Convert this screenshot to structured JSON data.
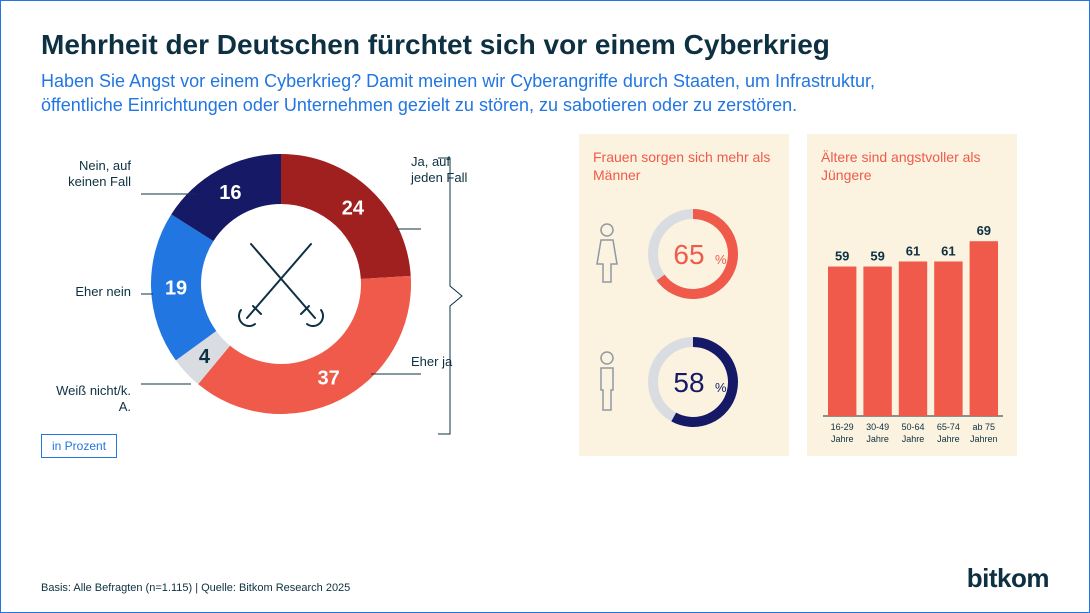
{
  "headline": "Mehrheit der Deutschen fürchtet sich vor einem Cyberkrieg",
  "subhead": "Haben Sie Angst vor einem Cyberkrieg? Damit meinen wir Cyberangriffe durch Staaten, um Infrastruktur, öffentliche Einrichtungen oder Unternehmen gezielt zu stören, zu sabotieren oder zu zerstören.",
  "donut": {
    "type": "donut",
    "inner_radius": 80,
    "outer_radius": 130,
    "segments": [
      {
        "label": "Ja, auf\njeden Fall",
        "value": 24,
        "color": "#a01f1f"
      },
      {
        "label": "Eher ja",
        "value": 37,
        "color": "#ef5a4a"
      },
      {
        "label": "Weiß nicht/k. A.",
        "value": 4,
        "color": "#d9dde1",
        "textcolor": "#0d3042"
      },
      {
        "label": "Eher nein",
        "value": 19,
        "color": "#2176e2"
      },
      {
        "label": "Nein, auf\nkeinen Fall",
        "value": 16,
        "color": "#161a66"
      }
    ],
    "center_icon": "crossed-swords",
    "legend_text": "in Prozent"
  },
  "gender_panel": {
    "title": "Frauen sorgen sich mehr als Männer",
    "female": {
      "value": 65,
      "color": "#ef5a4a",
      "icon_color": "#8e9aa3"
    },
    "male": {
      "value": 58,
      "color": "#161a66",
      "icon_color": "#8e9aa3"
    }
  },
  "age_panel": {
    "title": "Ältere sind angstvoller als Jüngere",
    "type": "bar",
    "bar_color": "#ef5a4a",
    "text_color": "#0d3042",
    "ymax": 75,
    "bars": [
      {
        "label": "16-29",
        "sublabel": "Jahre",
        "value": 59
      },
      {
        "label": "30-49",
        "sublabel": "Jahre",
        "value": 59
      },
      {
        "label": "50-64",
        "sublabel": "Jahre",
        "value": 61
      },
      {
        "label": "65-74",
        "sublabel": "Jahre",
        "value": 61
      },
      {
        "label": "ab 75",
        "sublabel": "Jahren",
        "value": 69
      }
    ]
  },
  "source": "Basis: Alle Befragten (n=1.115) | Quelle: Bitkom Research 2025",
  "logo": "bitkom",
  "colors": {
    "bg": "#ffffff",
    "border": "#2176e2",
    "headline": "#0d3042",
    "subhead": "#2176e2",
    "panel_bg": "#fbf3e0"
  }
}
